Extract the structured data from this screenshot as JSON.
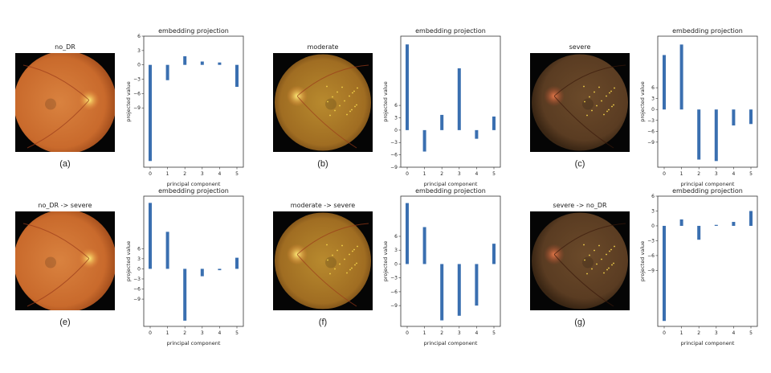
{
  "colors": {
    "bar": "#3a6fb0",
    "axis": "#333333"
  },
  "panels": [
    {
      "image_title": "no_DR",
      "caption": "(a)",
      "image_style": "bright-orange-disc-right",
      "chart": {
        "type": "bar",
        "title": "embedding projection",
        "xlabel": "principal component",
        "ylabel": "projected value",
        "categories": [
          "0",
          "1",
          "2",
          "3",
          "4",
          "5"
        ],
        "values": [
          -20.1,
          -3.2,
          1.8,
          0.7,
          0.5,
          -4.6
        ],
        "ylim": [
          -21.4,
          6
        ],
        "yticks": [
          6,
          3,
          0,
          -3,
          -6,
          -9
        ]
      }
    },
    {
      "image_title": "moderate",
      "caption": "(b)",
      "image_style": "yellow-orange-disc-left",
      "chart": {
        "type": "bar",
        "title": "embedding projection",
        "xlabel": "principal component",
        "ylabel": "projected value",
        "categories": [
          "0",
          "1",
          "2",
          "3",
          "4",
          "5"
        ],
        "values": [
          20.8,
          -5.2,
          3.7,
          15.0,
          -2.1,
          3.3
        ],
        "ylim": [
          -9,
          22.8
        ],
        "yticks": [
          6,
          3,
          0,
          -3,
          -6,
          -9
        ]
      }
    },
    {
      "image_title": "severe",
      "caption": "(c)",
      "image_style": "dark-brown-disc-left",
      "chart": {
        "type": "bar",
        "title": "embedding projection",
        "xlabel": "principal component",
        "ylabel": "projected value",
        "categories": [
          "0",
          "1",
          "2",
          "3",
          "4",
          "5"
        ],
        "values": [
          15.0,
          17.9,
          -13.8,
          -14.2,
          -4.4,
          -4.0
        ],
        "ylim": [
          -15.9,
          20.2
        ],
        "yticks": [
          6,
          3,
          0,
          -3,
          -6,
          -9
        ]
      }
    },
    {
      "image_title": "no_DR -> severe",
      "caption": "(e)",
      "image_style": "bright-orange-disc-right",
      "chart": {
        "type": "bar",
        "title": "embedding projection",
        "xlabel": "principal component",
        "ylabel": "projected value",
        "categories": [
          "0",
          "1",
          "2",
          "3",
          "4",
          "5"
        ],
        "values": [
          19.6,
          11.0,
          -15.4,
          -2.2,
          -0.4,
          3.3
        ],
        "ylim": [
          -17.1,
          21.6
        ],
        "yticks": [
          6,
          3,
          0,
          -3,
          -6,
          -9
        ]
      }
    },
    {
      "image_title": "moderate -> severe",
      "caption": "(f)",
      "image_style": "yellow-orange-disc-left",
      "chart": {
        "type": "bar",
        "title": "embedding projection",
        "xlabel": "principal component",
        "ylabel": "projected value",
        "categories": [
          "0",
          "1",
          "2",
          "3",
          "4",
          "5"
        ],
        "values": [
          13.2,
          8.0,
          -12.2,
          -11.2,
          -9.0,
          4.4
        ],
        "ylim": [
          -13.5,
          14.7
        ],
        "yticks": [
          6,
          3,
          0,
          -3,
          -6,
          -9
        ]
      }
    },
    {
      "image_title": "severe -> no_DR",
      "caption": "(g)",
      "image_style": "dark-brown-disc-left",
      "chart": {
        "type": "bar",
        "title": "embedding projection",
        "xlabel": "principal component",
        "ylabel": "projected value",
        "categories": [
          "0",
          "1",
          "2",
          "3",
          "4",
          "5"
        ],
        "values": [
          -19.2,
          1.3,
          -2.8,
          0.2,
          0.8,
          3.0
        ],
        "ylim": [
          -20.3,
          6
        ],
        "yticks": [
          6,
          3,
          0,
          -3,
          -6,
          -9
        ]
      }
    }
  ]
}
